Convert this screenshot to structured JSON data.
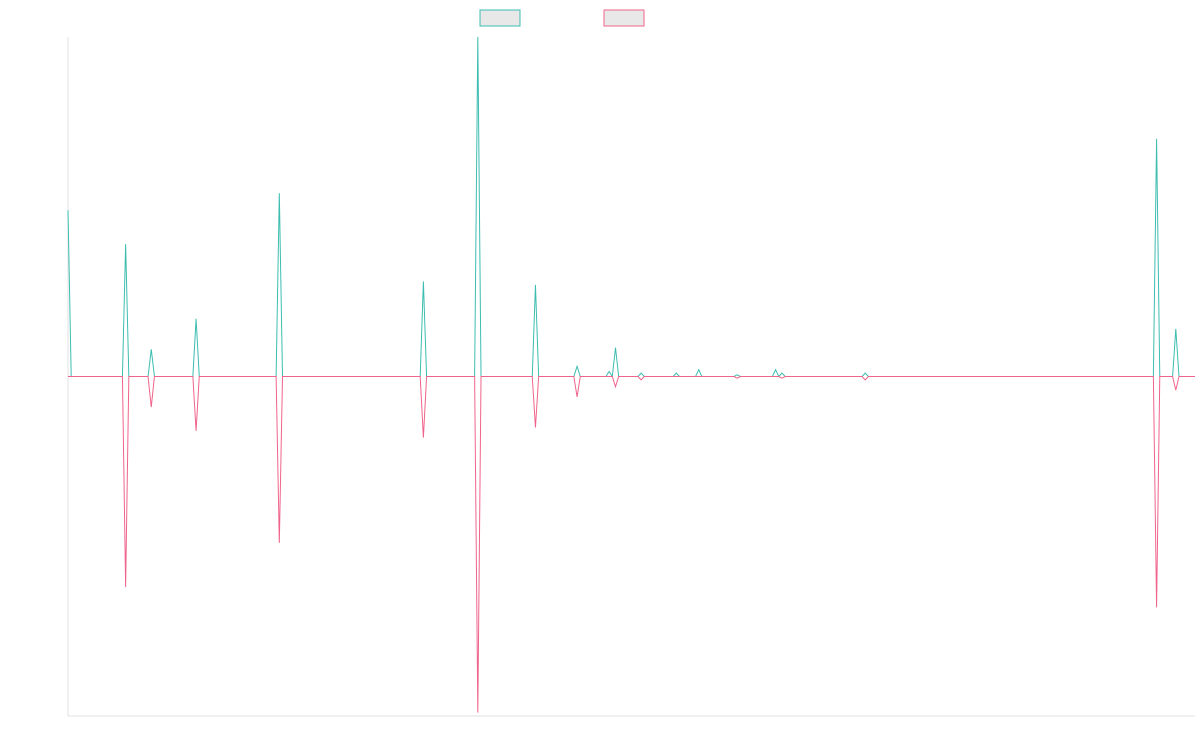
{
  "chart_data": {
    "type": "line",
    "x": [
      0,
      1,
      17,
      18,
      19,
      25,
      26,
      27,
      39,
      40,
      41,
      65,
      66,
      67,
      110,
      111,
      112,
      127,
      128,
      129,
      145,
      146,
      147,
      158,
      159,
      160,
      168,
      169,
      170,
      171,
      172,
      178,
      179,
      180,
      189,
      190,
      191,
      196,
      197,
      198,
      208,
      209,
      210,
      220,
      221,
      222,
      223,
      224,
      248,
      249,
      250,
      339,
      340,
      341,
      345,
      346,
      347,
      352
    ],
    "series": [
      {
        "color": "#3dbdb0",
        "values": [
          49,
          0,
          0,
          39,
          0,
          0,
          8,
          0,
          0,
          17,
          0,
          0,
          54,
          0,
          0,
          28,
          0,
          0,
          100,
          0,
          0,
          27,
          0,
          0,
          3,
          0,
          0,
          1.5,
          0,
          8.5,
          0,
          0,
          1,
          0,
          0,
          1,
          0,
          0,
          2,
          0,
          0,
          0.5,
          0,
          0,
          2,
          0,
          1,
          0,
          0,
          1,
          0,
          0,
          70,
          0,
          0,
          14,
          0,
          0
        ]
      },
      {
        "color": "#f0648c",
        "values": [
          0,
          0,
          0,
          -62,
          0,
          0,
          -9,
          0,
          0,
          -16,
          0,
          0,
          -49,
          0,
          0,
          -18,
          0,
          0,
          -99,
          0,
          0,
          -15,
          0,
          0,
          -6,
          0,
          0,
          0,
          0,
          -3,
          0,
          0,
          -1,
          0,
          0,
          0,
          0,
          0,
          0,
          0,
          0,
          -0.5,
          0,
          0,
          0,
          0,
          -0.5,
          0,
          0,
          -1,
          0,
          0,
          -68,
          0,
          0,
          -4,
          0,
          0
        ]
      }
    ],
    "xlim": [
      0,
      352
    ],
    "ylim": [
      -100,
      100
    ],
    "grid": false
  }
}
